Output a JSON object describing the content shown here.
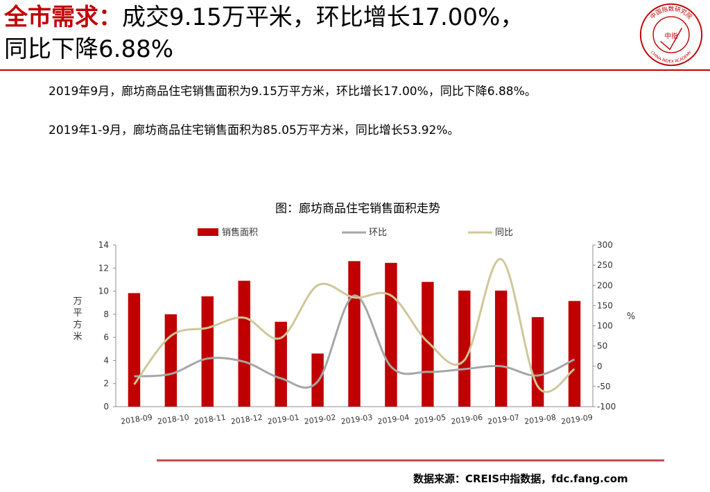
{
  "header": {
    "title_keyword": "全市需求：",
    "title_rest_line1": "成交9.15万平米，环比增长17.00%，",
    "title_line2": "同比下降6.88%"
  },
  "logo": {
    "text": "中国指数研究院",
    "center_text": "中指",
    "english_text": "CHINA INDEX ACADEMY"
  },
  "summary": {
    "line1": "2019年9月，廊坊商品住宅销售面积为9.15万平方米，环比增长17.00%，同比下降6.88%。",
    "line2": "2019年1-9月，廊坊商品住宅销售面积为85.05万平方米，同比增长53.92%。"
  },
  "footer": {
    "source": "数据来源：CREIS中指数据，fdc.fang.com"
  },
  "colors": {
    "accent": "#c00000",
    "bar": "#c00000",
    "mom": "#a6a6a6",
    "yoy": "#cfc79a",
    "rule": "#c0504d"
  },
  "chart_data": {
    "type": "bar",
    "title": "图：廊坊商品住宅销售面积走势",
    "categories": [
      "2018-09",
      "2018-10",
      "2018-11",
      "2018-12",
      "2019-01",
      "2019-02",
      "2019-03",
      "2019-04",
      "2019-05",
      "2019-06",
      "2019-07",
      "2019-08",
      "2019-09"
    ],
    "ylabel": "万平方米",
    "y2label": "%",
    "ylim": [
      0,
      14
    ],
    "yticks": [
      0,
      2,
      4,
      6,
      8,
      10,
      12,
      14
    ],
    "y2lim": [
      -100,
      300
    ],
    "y2ticks": [
      -100,
      -50,
      0,
      50,
      100,
      150,
      200,
      250,
      300
    ],
    "legend_position": "top",
    "grid": false,
    "series": [
      {
        "name": "销售面积",
        "type": "bar",
        "axis": "left",
        "values": [
          9.83,
          8.0,
          9.55,
          10.9,
          7.35,
          4.6,
          12.6,
          12.45,
          10.8,
          10.05,
          10.05,
          7.75,
          9.15
        ]
      },
      {
        "name": "环比",
        "type": "line",
        "axis": "right",
        "values": [
          -25,
          -19,
          19,
          11,
          -30,
          -38,
          175,
          -1,
          -14,
          -7,
          0,
          -23,
          17
        ]
      },
      {
        "name": "同比",
        "type": "line",
        "axis": "right",
        "values": [
          -45,
          75,
          95,
          120,
          70,
          200,
          170,
          175,
          60,
          15,
          265,
          -50,
          -7
        ]
      }
    ]
  }
}
